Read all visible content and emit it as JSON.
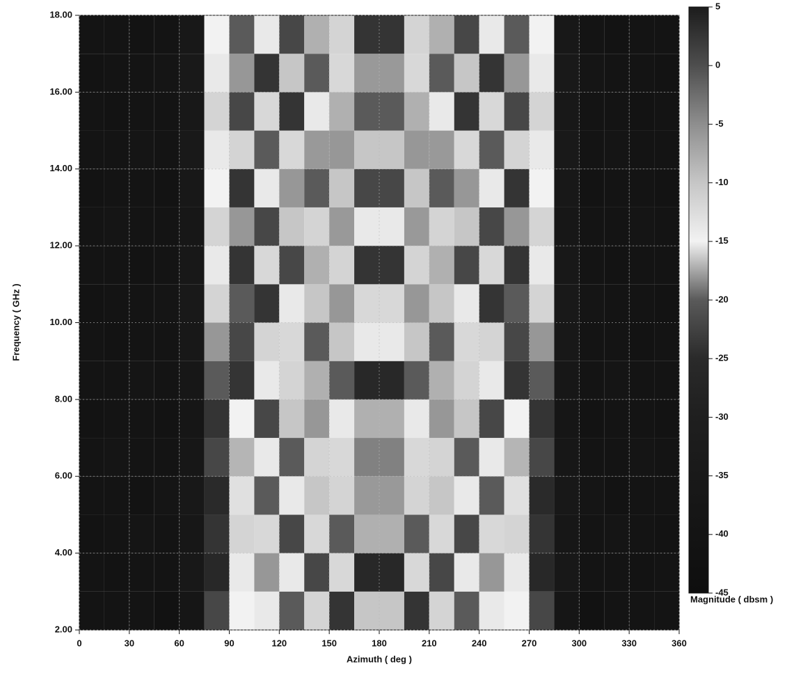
{
  "chart_data": {
    "type": "heatmap",
    "x_label": "Azimuth ( deg )",
    "y_label": "Frequency ( GHz )",
    "colorbar_label": "Magnitude ( dbsm )",
    "x": [
      7.5,
      22.5,
      37.5,
      52.5,
      67.5,
      82.5,
      97.5,
      112.5,
      127.5,
      142.5,
      157.5,
      172.5,
      187.5,
      202.5,
      217.5,
      232.5,
      247.5,
      262.5,
      277.5,
      292.5,
      307.5,
      322.5,
      337.5,
      352.5
    ],
    "y": [
      2.5,
      3.5,
      4.5,
      5.5,
      6.5,
      7.5,
      8.5,
      9.5,
      10.5,
      11.5,
      12.5,
      13.5,
      14.5,
      15.5,
      16.5,
      17.5
    ],
    "z": [
      [
        -40,
        -40,
        -40,
        -42,
        -38,
        -22,
        -15,
        -14,
        -20,
        -16,
        -24,
        -10,
        -10,
        -24,
        -16,
        -20,
        -14,
        -15,
        -22,
        -38,
        -42,
        -40,
        -40,
        -40
      ],
      [
        -40,
        -41,
        -40,
        -40,
        -36,
        -26,
        -14,
        -18,
        -14,
        -22,
        -12,
        -26,
        -26,
        -12,
        -22,
        -14,
        -18,
        -14,
        -26,
        -36,
        -40,
        -40,
        -41,
        -40
      ],
      [
        -41,
        -40,
        -39,
        -40,
        -37,
        -24,
        -16,
        -12,
        -22,
        -12,
        -20,
        -8,
        -8,
        -20,
        -12,
        -22,
        -12,
        -16,
        -24,
        -37,
        -40,
        -39,
        -40,
        -41
      ],
      [
        -40,
        -40,
        -41,
        -39,
        -36,
        -25,
        -13,
        -20,
        -14,
        -10,
        -16,
        -6,
        -6,
        -16,
        -10,
        -14,
        -20,
        -13,
        -25,
        -36,
        -39,
        -41,
        -40,
        -40
      ],
      [
        -40,
        -39,
        -40,
        -40,
        -37,
        -22,
        -17,
        -14,
        -20,
        -16,
        -12,
        -4,
        -4,
        -12,
        -16,
        -20,
        -14,
        -17,
        -22,
        -37,
        -40,
        -40,
        -39,
        -40
      ],
      [
        -41,
        -40,
        -40,
        -41,
        -38,
        -24,
        -15,
        -22,
        -10,
        -18,
        -14,
        -8,
        -8,
        -14,
        -18,
        -10,
        -22,
        -15,
        -24,
        -38,
        -41,
        -40,
        -40,
        -41
      ],
      [
        -40,
        -40,
        -39,
        -40,
        -37,
        -20,
        -24,
        -14,
        -16,
        -8,
        -20,
        -26,
        -26,
        -20,
        -8,
        -16,
        -14,
        -24,
        -20,
        -37,
        -40,
        -39,
        -40,
        -40
      ],
      [
        -40,
        -41,
        -40,
        -40,
        -36,
        -18,
        -22,
        -16,
        -12,
        -20,
        -10,
        -14,
        -14,
        -10,
        -20,
        -12,
        -16,
        -22,
        -18,
        -36,
        -40,
        -40,
        -41,
        -40
      ],
      [
        -41,
        -40,
        -40,
        -39,
        -35,
        -16,
        -20,
        -24,
        -14,
        -10,
        -18,
        -12,
        -12,
        -18,
        -10,
        -14,
        -24,
        -20,
        -16,
        -35,
        -39,
        -40,
        -40,
        -41
      ],
      [
        -40,
        -40,
        -41,
        -40,
        -36,
        -14,
        -24,
        -12,
        -22,
        -8,
        -16,
        -24,
        -24,
        -16,
        -8,
        -22,
        -12,
        -24,
        -14,
        -36,
        -40,
        -41,
        -40,
        -40
      ],
      [
        -40,
        -39,
        -40,
        -40,
        -37,
        -16,
        -18,
        -22,
        -10,
        -16,
        -6,
        -14,
        -14,
        -6,
        -16,
        -10,
        -22,
        -18,
        -16,
        -37,
        -40,
        -40,
        -39,
        -40
      ],
      [
        -41,
        -40,
        -40,
        -41,
        -36,
        -15,
        -24,
        -14,
        -18,
        -20,
        -10,
        -22,
        -22,
        -10,
        -20,
        -18,
        -14,
        -24,
        -15,
        -36,
        -41,
        -40,
        -40,
        -41
      ],
      [
        -40,
        -40,
        -39,
        -40,
        -35,
        -14,
        -16,
        -20,
        -12,
        -6,
        -18,
        -10,
        -10,
        -18,
        -6,
        -12,
        -20,
        -16,
        -14,
        -35,
        -40,
        -39,
        -40,
        -40
      ],
      [
        -40,
        -41,
        -40,
        -40,
        -36,
        -16,
        -22,
        -12,
        -24,
        -14,
        -8,
        -20,
        -20,
        -8,
        -14,
        -24,
        -12,
        -22,
        -16,
        -36,
        -40,
        -40,
        -41,
        -40
      ],
      [
        -41,
        -40,
        -40,
        -39,
        -35,
        -14,
        -18,
        -24,
        -10,
        -20,
        -12,
        -6,
        -6,
        -12,
        -20,
        -10,
        -24,
        -18,
        -14,
        -35,
        -39,
        -40,
        -40,
        -41
      ],
      [
        -40,
        -40,
        -41,
        -40,
        -36,
        -15,
        -20,
        -14,
        -22,
        -8,
        -16,
        -24,
        -24,
        -16,
        -8,
        -22,
        -14,
        -20,
        -15,
        -36,
        -40,
        -41,
        -40,
        -40
      ]
    ],
    "xlim": [
      0,
      360
    ],
    "xticks": [
      0,
      30,
      60,
      90,
      120,
      150,
      180,
      210,
      240,
      270,
      300,
      330,
      360
    ],
    "ylim": [
      2,
      18
    ],
    "yticks": [
      {
        "value": 2,
        "label": "2.00"
      },
      {
        "value": 4,
        "label": "4.00"
      },
      {
        "value": 6,
        "label": "6.00"
      },
      {
        "value": 8,
        "label": "8.00"
      },
      {
        "value": 10,
        "label": "10.00"
      },
      {
        "value": 12,
        "label": "12.00"
      },
      {
        "value": 14,
        "label": "14.00"
      },
      {
        "value": 16,
        "label": "16.00"
      },
      {
        "value": 18,
        "label": "18.00"
      }
    ],
    "zlim": [
      -45,
      5
    ],
    "zticks": [
      5,
      0,
      -5,
      -10,
      -15,
      -20,
      -25,
      -30,
      -35,
      -40,
      -45
    ],
    "colormap": [
      "#0e0e0e",
      "#141414",
      "#191919",
      "#1f1f1f",
      "#2a2a2a",
      "#5a5a5a",
      "#f2f2f2",
      "#c6c6c6",
      "#8e8e8e",
      "#4e4e4e",
      "#1c1c1c"
    ],
    "grid": true
  }
}
